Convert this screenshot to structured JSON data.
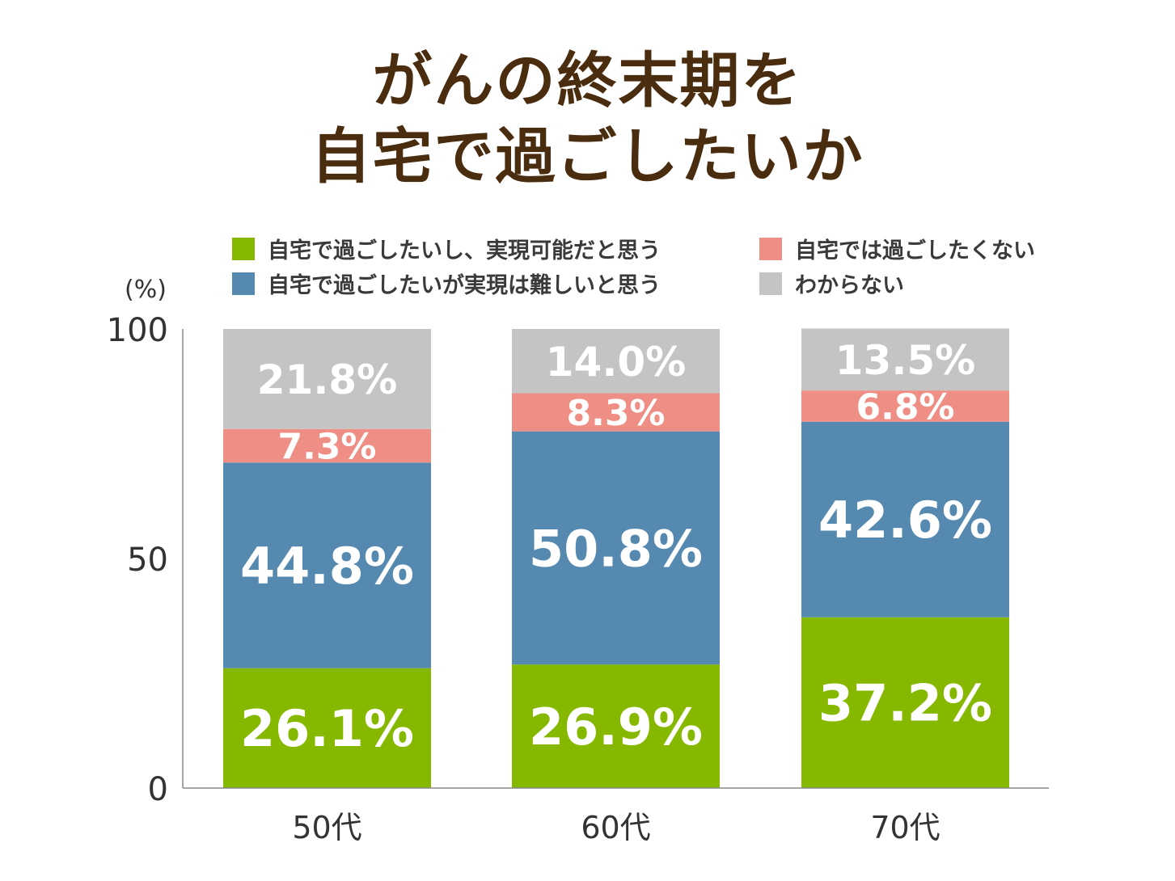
{
  "chart_data": {
    "type": "bar",
    "stacked": true,
    "title": "がんの終末期を\n自宅で過ごしたいか",
    "title_lines": [
      "がんの終末期を",
      "自宅で過ごしたいか"
    ],
    "ylabel": "(%)",
    "ylim": [
      0,
      100
    ],
    "yticks": [
      0,
      50,
      100
    ],
    "categories": [
      "50代",
      "60代",
      "70代"
    ],
    "legend_position": "top",
    "grid": false,
    "series": [
      {
        "name": "自宅で過ごしたいし、実現可能だと思う",
        "color": "#86b800",
        "values": [
          26.1,
          26.9,
          37.2
        ],
        "labels": [
          "26.1%",
          "26.9%",
          "37.2%"
        ]
      },
      {
        "name": "自宅で過ごしたいが実現は難しいと思う",
        "color": "#5589b0",
        "values": [
          44.8,
          50.8,
          42.6
        ],
        "labels": [
          "44.8%",
          "50.8%",
          "42.6%"
        ]
      },
      {
        "name": "自宅では過ごしたくない",
        "color": "#ee8e85",
        "values": [
          7.3,
          8.3,
          6.8
        ],
        "labels": [
          "7.3%",
          "8.3%",
          "6.8%"
        ]
      },
      {
        "name": "わからない",
        "color": "#c4c4c4",
        "values": [
          21.8,
          14.0,
          13.5
        ],
        "labels": [
          "21.8%",
          "14.0%",
          "13.5%"
        ]
      }
    ]
  }
}
